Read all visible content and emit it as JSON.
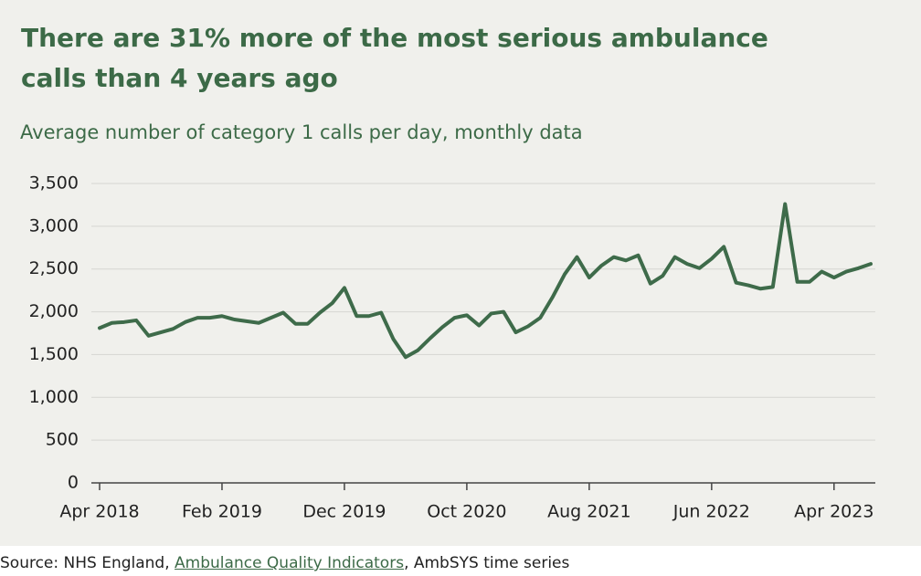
{
  "chart_data": {
    "type": "line",
    "title": "There are 31% more of the most serious ambulance calls than 4 years ago",
    "subtitle": "Average number of category 1 calls per day, monthly data",
    "source_prefix": "Source: NHS England, ",
    "source_link": "Ambulance Quality Indicators",
    "source_suffix": ", AmbSYS time series",
    "categories": [
      "Apr 2018",
      null,
      null,
      null,
      null,
      null,
      null,
      null,
      null,
      null,
      "Feb 2019",
      null,
      null,
      null,
      null,
      null,
      null,
      null,
      null,
      null,
      "Dec 2019",
      null,
      null,
      null,
      null,
      null,
      null,
      null,
      null,
      null,
      "Oct 2020",
      null,
      null,
      null,
      null,
      null,
      null,
      null,
      null,
      null,
      "Aug 2021",
      null,
      null,
      null,
      null,
      null,
      null,
      null,
      null,
      null,
      "Jun 2022",
      null,
      null,
      null,
      null,
      null,
      null,
      null,
      null,
      null,
      "Apr 2023",
      null,
      null,
      null
    ],
    "series": [
      {
        "name": "Category 1 calls per day",
        "color": "#3e6b4a",
        "values": [
          1810,
          1870,
          1880,
          1900,
          1720,
          1760,
          1800,
          1880,
          1930,
          1930,
          1950,
          1910,
          1890,
          1870,
          1930,
          1990,
          1860,
          1860,
          1990,
          2100,
          2280,
          1950,
          1950,
          1990,
          1680,
          1470,
          1550,
          1690,
          1820,
          1930,
          1960,
          1840,
          1980,
          2000,
          1760,
          1830,
          1930,
          2170,
          2440,
          2640,
          2400,
          2540,
          2640,
          2600,
          2660,
          2330,
          2420,
          2640,
          2560,
          2510,
          2620,
          2760,
          2340,
          2310,
          2270,
          2290,
          3260,
          2350,
          2350,
          2470,
          2400,
          2470,
          2510,
          2560
        ]
      }
    ],
    "ylim": [
      0,
      3500
    ],
    "yticks": [
      0,
      500,
      {
        "value": 1000,
        "label": "1,000"
      },
      {
        "value": 1500,
        "label": "1,500"
      },
      {
        "value": 2000,
        "label": "2,000"
      },
      {
        "value": 2500,
        "label": "2,500"
      },
      {
        "value": 3000,
        "label": "3,000"
      },
      {
        "value": 3500,
        "label": "3,500"
      }
    ],
    "grid": true
  }
}
